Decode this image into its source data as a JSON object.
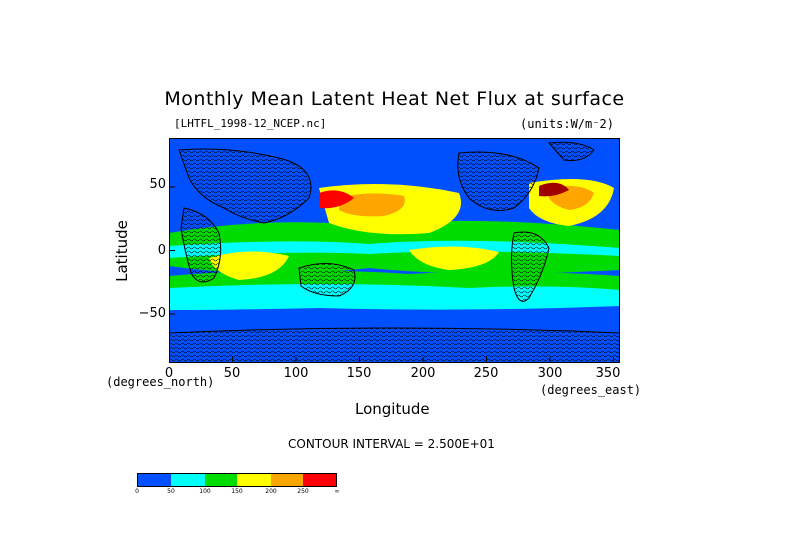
{
  "title": "Monthly Mean Latent Heat Net Flux at surface",
  "file_label": "[LHTFL_1998-12_NCEP.nc]",
  "units_label": "(units:W/m⁻2)",
  "y_axis": {
    "label": "Latitude",
    "units": "(degrees_north)",
    "ticks": [
      "50",
      "0",
      "−50"
    ]
  },
  "x_axis": {
    "label": "Longitude",
    "units": "(degrees_east)",
    "ticks": [
      "0",
      "50",
      "100",
      "150",
      "200",
      "250",
      "300",
      "350"
    ]
  },
  "contour_interval": "CONTOUR INTERVAL = 2.500E+01",
  "colorbar": {
    "labels": [
      "0",
      "50",
      "100",
      "150",
      "200",
      "250",
      "∞"
    ],
    "colors": [
      "#0050ff",
      "#00ffff",
      "#00b4ff",
      "#00dc00",
      "#ffff00",
      "#ffa500",
      "#ff0000"
    ]
  },
  "map": {
    "projection": "cylindrical",
    "lon_range": [
      0,
      355
    ],
    "lat_range": [
      -90,
      90
    ],
    "ocean_colors": [
      "#0050ff",
      "#00ffff",
      "#00dc00",
      "#ffff00",
      "#ffa500",
      "#ff0000",
      "#a00000"
    ]
  }
}
